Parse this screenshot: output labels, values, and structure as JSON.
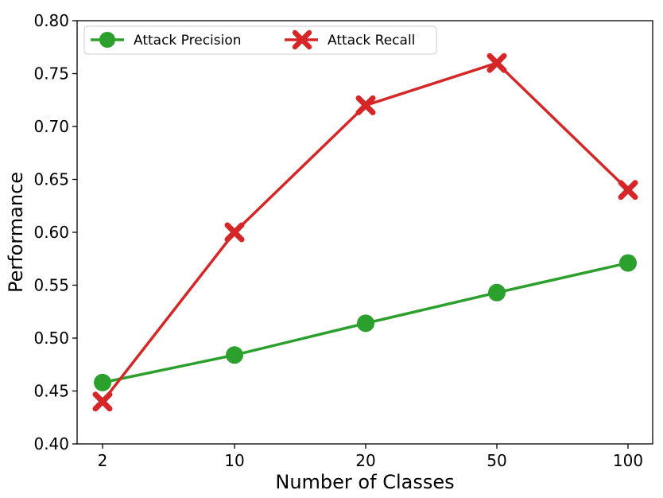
{
  "chart_data": {
    "type": "line",
    "categories": [
      "2",
      "10",
      "20",
      "50",
      "100"
    ],
    "series": [
      {
        "name": "Attack Precision",
        "values": [
          0.458,
          0.484,
          0.514,
          0.543,
          0.571
        ],
        "color": "#2ca02c",
        "marker": "circle"
      },
      {
        "name": "Attack Recall",
        "values": [
          0.44,
          0.6,
          0.72,
          0.76,
          0.64
        ],
        "color": "#d62728",
        "marker": "x"
      }
    ],
    "xlabel": "Number of Classes",
    "ylabel": "Performance",
    "ylim": [
      0.4,
      0.8
    ],
    "yticks": [
      "0.40",
      "0.45",
      "0.50",
      "0.55",
      "0.60",
      "0.65",
      "0.70",
      "0.75",
      "0.80"
    ],
    "grid": false,
    "legend": "top-left"
  }
}
